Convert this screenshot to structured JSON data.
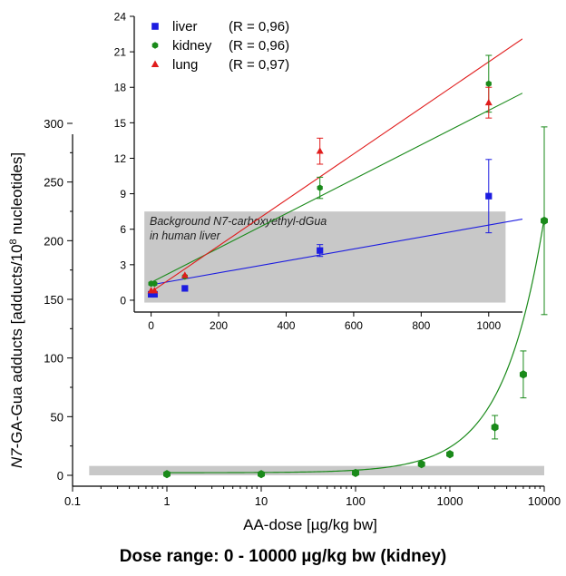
{
  "chart_data": [
    {
      "type": "scatter",
      "title": "",
      "xlabel": "AA-dose [µg/kg bw]",
      "ylabel": "N7-GA-Gua adducts [adducts/10",
      "ylabel_sup": "8",
      "ylabel_tail": " nucleotides]",
      "x_scale": "log",
      "xlim": [
        0.1,
        10000
      ],
      "ylim": [
        0,
        300
      ],
      "x_ticks": [
        0.1,
        1,
        10,
        100,
        1000,
        10000
      ],
      "x_tick_labels": [
        "0.1",
        "1",
        "10",
        "100",
        "1000",
        "10000"
      ],
      "y_ticks": [
        0,
        50,
        100,
        150,
        200,
        250,
        300
      ],
      "y_tick_labels": [
        "0",
        "50",
        "100",
        "150",
        "200",
        "250",
        "300"
      ],
      "background_band": {
        "x_from": 0.15,
        "x_to": 10000,
        "y_from": 0,
        "y_to": 8
      },
      "series": [
        {
          "name": "kidney",
          "color": "#1a8a1a",
          "marker": "hexagon",
          "x": [
            1,
            10,
            100,
            500,
            1000,
            3000,
            6000,
            10000
          ],
          "y": [
            1,
            1,
            2,
            9.5,
            18,
            41,
            86,
            217
          ],
          "err": [
            0,
            0,
            0,
            0,
            0,
            10,
            20,
            80
          ],
          "fit": "linear"
        }
      ]
    },
    {
      "type": "scatter",
      "title": "",
      "xlabel": "",
      "ylabel": "",
      "xlim": [
        -50,
        1100
      ],
      "ylim": [
        -1,
        24
      ],
      "x_ticks": [
        0,
        200,
        400,
        600,
        800,
        1000
      ],
      "x_tick_labels": [
        "0",
        "200",
        "400",
        "600",
        "800",
        "1000"
      ],
      "y_ticks": [
        0,
        3,
        6,
        9,
        12,
        15,
        18,
        21,
        24
      ],
      "y_tick_labels": [
        "0",
        "3",
        "6",
        "9",
        "12",
        "15",
        "18",
        "21",
        "24"
      ],
      "legend_position": "top-left",
      "background_band": {
        "x_from": -20,
        "x_to": 1050,
        "y_from": -0.2,
        "y_to": 7.5
      },
      "band_label_line1": "Background N7-carboxyethyl-dGua",
      "band_label_line2": "in human liver",
      "series": [
        {
          "name": "liver",
          "r_label": "(R = 0,96)",
          "color": "#1c1ce0",
          "marker": "square",
          "x": [
            0,
            10,
            100,
            500,
            1000
          ],
          "y": [
            0.5,
            0.5,
            1.0,
            4.2,
            8.8
          ],
          "err": [
            0,
            0,
            0,
            0.5,
            3.1
          ],
          "fit": {
            "slope": 0.00505,
            "intercept": 1.3
          }
        },
        {
          "name": "kidney",
          "r_label": "(R = 0,96)",
          "color": "#1a8a1a",
          "marker": "hexagon",
          "x": [
            0,
            10,
            100,
            500,
            1000
          ],
          "y": [
            1.4,
            1.4,
            2.0,
            9.5,
            18.3
          ],
          "err": [
            0,
            0,
            0,
            0.9,
            2.4
          ],
          "fit": {
            "slope": 0.01455,
            "intercept": 1.5
          }
        },
        {
          "name": "lung",
          "r_label": "(R = 0,97)",
          "color": "#e01c1c",
          "marker": "triangle",
          "x": [
            0,
            10,
            100,
            500,
            1000
          ],
          "y": [
            0.8,
            0.8,
            2.1,
            12.6,
            16.7
          ],
          "err": [
            0,
            0,
            0,
            1.1,
            1.3
          ],
          "fit": {
            "slope": 0.01945,
            "intercept": 0.7
          }
        }
      ]
    }
  ],
  "caption": "Dose range: 0 - 10000 µg/kg bw (kidney)"
}
